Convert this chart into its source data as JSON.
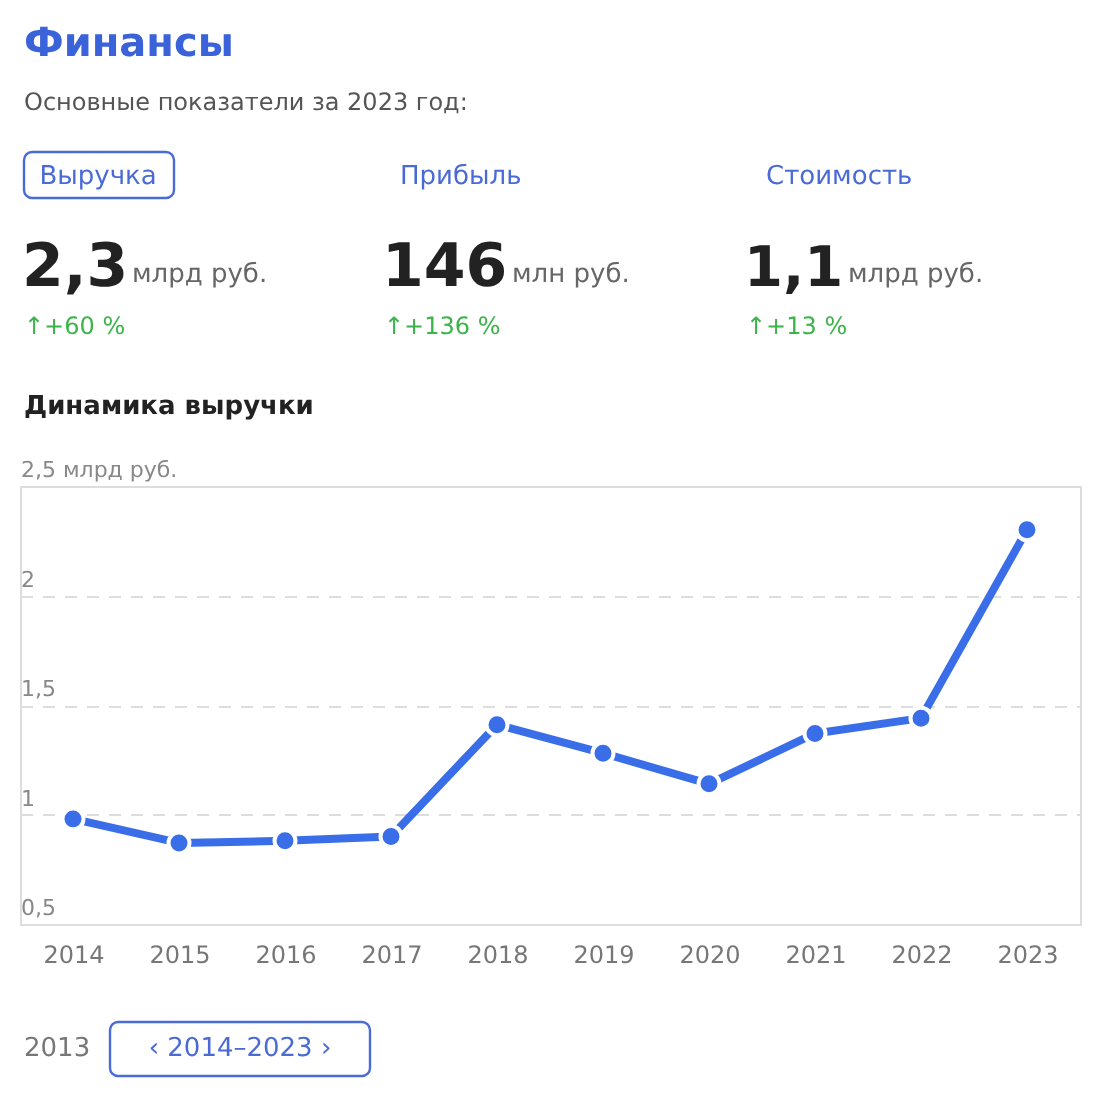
{
  "chart_data": {
    "type": "line",
    "title": "Финансы",
    "subtitle": "Основные показатели за 2023 год:",
    "annotations": [
      "Выручка",
      "Прибыль",
      "Стоимость",
      "2,3",
      "млрд руб.",
      "146",
      "млн руб.",
      "1,1",
      "млрд руб.",
      "↑+60 %",
      "↑+136 %",
      "↑+13 %",
      "Динамика выручки",
      "2013",
      "‹  2014–2023  ›"
    ],
    "categories": [
      "2014",
      "2015",
      "2016",
      "2017",
      "2018",
      "2019",
      "2020",
      "2021",
      "2022",
      "2023"
    ],
    "series": [
      {
        "color": "#3a6ee8",
        "values": [
          0.98,
          0.87,
          0.88,
          0.9,
          1.41,
          1.28,
          1.14,
          1.37,
          1.44,
          2.3
        ]
      }
    ],
    "ylim": [
      0.5,
      2.5
    ],
    "yticks": [
      {
        "value": 0.5,
        "label": "0,5"
      },
      {
        "value": 1,
        "label": "1"
      },
      {
        "value": 1.5,
        "label": "1,5"
      },
      {
        "value": 2,
        "label": "2"
      },
      {
        "value": 2.5,
        "label": "2,5 млрд руб."
      }
    ],
    "grid": "y",
    "marker": "circle",
    "line_style": "solid"
  }
}
